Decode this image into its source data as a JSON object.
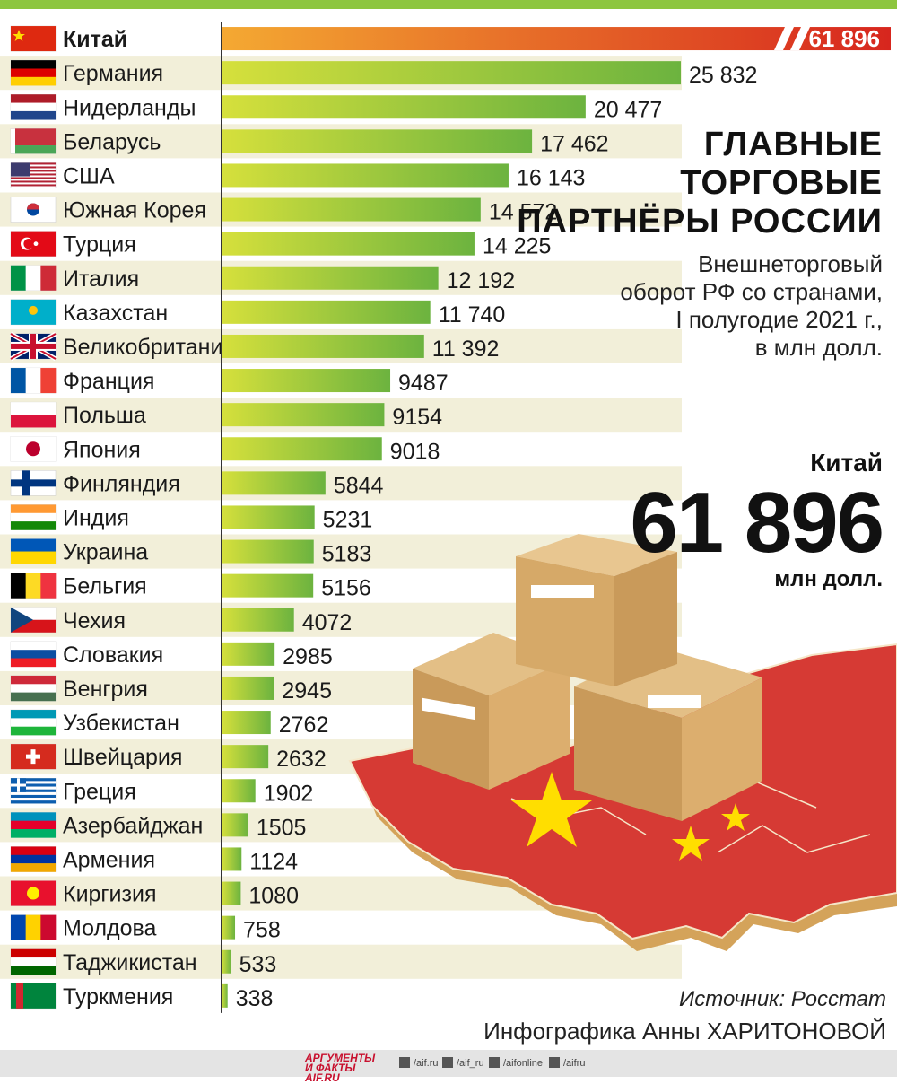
{
  "title": "ГЛАВНЫЕ ТОРГОВЫЕ ПАРТНЁРЫ РОССИИ",
  "subtitle": "Внешнеторговый\nоборот РФ со странами,\nI полугодие 2021 г.,\nв млн долл.",
  "highlight": {
    "country": "Китай",
    "value": "61 896",
    "unit": "млн долл."
  },
  "source": "Источник: Росстат",
  "credit": "Инфографика Анны ХАРИТОНОВОЙ",
  "footer": {
    "brand": "АРГУМЕНТЫ И ФАКТЫ AIF.RU",
    "social": [
      "/aif.ru",
      "/aif_ru",
      "/aifonline",
      "/aifru"
    ]
  },
  "colors": {
    "bar_start": "#d6e03c",
    "bar_end": "#6cb33f",
    "top_bar_start": "#f4a932",
    "top_bar_end": "#d7261e",
    "band": "#f2efd9",
    "accent": "#8dc63f"
  },
  "icons": [
    "flag-icon",
    "cardboard-box-icon",
    "china-map-icon"
  ],
  "chart_data": {
    "type": "bar",
    "orientation": "horizontal",
    "categories": [
      "Китай",
      "Германия",
      "Нидерланды",
      "Беларусь",
      "США",
      "Южная Корея",
      "Турция",
      "Италия",
      "Казахстан",
      "Великобритания",
      "Франция",
      "Польша",
      "Япония",
      "Финляндия",
      "Индия",
      "Украина",
      "Бельгия",
      "Чехия",
      "Словакия",
      "Венгрия",
      "Узбекистан",
      "Швейцария",
      "Греция",
      "Азербайджан",
      "Армения",
      "Киргизия",
      "Молдова",
      "Таджикистан",
      "Туркмения"
    ],
    "values": [
      61896,
      25832,
      20477,
      17462,
      16143,
      14572,
      14225,
      12192,
      11740,
      11392,
      9487,
      9154,
      9018,
      5844,
      5231,
      5183,
      5156,
      4072,
      2985,
      2945,
      2762,
      2632,
      1902,
      1505,
      1124,
      1080,
      758,
      533,
      338
    ],
    "value_labels": [
      "61 896",
      "25 832",
      "20 477",
      "17 462",
      "16 143",
      "14 572",
      "14 225",
      "12 192",
      "11 740",
      "11 392",
      "9487",
      "9154",
      "9018",
      "5844",
      "5231",
      "5183",
      "5156",
      "4072",
      "2985",
      "2945",
      "2762",
      "2632",
      "1902",
      "1505",
      "1124",
      "1080",
      "758",
      "533",
      "338"
    ],
    "top_bar_broken": true,
    "flags": [
      {
        "type": "solid",
        "colors": [
          "#de2910"
        ],
        "emblem": "star"
      },
      {
        "type": "h",
        "colors": [
          "#000000",
          "#dd0000",
          "#ffce00"
        ]
      },
      {
        "type": "h",
        "colors": [
          "#ae1c28",
          "#ffffff",
          "#21468b"
        ]
      },
      {
        "type": "h2",
        "colors": [
          "#c8313e",
          "#4aa657"
        ]
      },
      {
        "type": "usa",
        "colors": [
          "#b22234",
          "#ffffff",
          "#3c3b6e"
        ]
      },
      {
        "type": "korea",
        "colors": [
          "#ffffff",
          "#cd2e3a",
          "#0047a0"
        ]
      },
      {
        "type": "solid",
        "colors": [
          "#e30a17"
        ],
        "emblem": "crescent"
      },
      {
        "type": "v",
        "colors": [
          "#009246",
          "#ffffff",
          "#ce2b37"
        ]
      },
      {
        "type": "solid",
        "colors": [
          "#00afca"
        ],
        "emblem": "sun"
      },
      {
        "type": "uk",
        "colors": [
          "#012169",
          "#ffffff",
          "#c8102e"
        ]
      },
      {
        "type": "v",
        "colors": [
          "#0055a4",
          "#ffffff",
          "#ef4135"
        ]
      },
      {
        "type": "h",
        "colors": [
          "#ffffff",
          "#dc143c"
        ]
      },
      {
        "type": "solid",
        "colors": [
          "#ffffff"
        ],
        "emblem": "disc"
      },
      {
        "type": "nordic",
        "colors": [
          "#ffffff",
          "#003580"
        ]
      },
      {
        "type": "h",
        "colors": [
          "#ff9933",
          "#ffffff",
          "#138808"
        ]
      },
      {
        "type": "h",
        "colors": [
          "#0057b7",
          "#ffd700"
        ]
      },
      {
        "type": "v",
        "colors": [
          "#000000",
          "#fdda24",
          "#ef3340"
        ]
      },
      {
        "type": "czech",
        "colors": [
          "#ffffff",
          "#d7141a",
          "#11457e"
        ]
      },
      {
        "type": "h",
        "colors": [
          "#ffffff",
          "#0b4ea2",
          "#ee1c25"
        ]
      },
      {
        "type": "h",
        "colors": [
          "#ce2939",
          "#ffffff",
          "#477050"
        ]
      },
      {
        "type": "h",
        "colors": [
          "#0099b5",
          "#ffffff",
          "#1eb53a"
        ]
      },
      {
        "type": "solid",
        "colors": [
          "#d52b1e"
        ],
        "emblem": "cross"
      },
      {
        "type": "greece",
        "colors": [
          "#0d5eaf",
          "#ffffff"
        ]
      },
      {
        "type": "h",
        "colors": [
          "#0092bc",
          "#e4002b",
          "#00af66"
        ]
      },
      {
        "type": "h",
        "colors": [
          "#d90012",
          "#0033a0",
          "#f2a800"
        ]
      },
      {
        "type": "solid",
        "colors": [
          "#e8112d"
        ],
        "emblem": "sun-yellow"
      },
      {
        "type": "v",
        "colors": [
          "#0046ae",
          "#ffd200",
          "#cc092f"
        ]
      },
      {
        "type": "h",
        "colors": [
          "#cc0000",
          "#ffffff",
          "#006600"
        ]
      },
      {
        "type": "turkmen",
        "colors": [
          "#00843d",
          "#d22630"
        ]
      }
    ]
  }
}
